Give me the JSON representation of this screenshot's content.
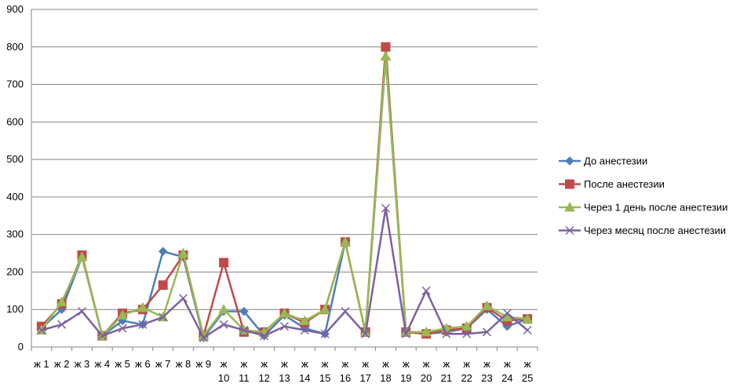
{
  "chart_data": {
    "type": "line",
    "categories": [
      "ж 1",
      "ж 2",
      "ж 3",
      "ж 4",
      "ж 5",
      "ж 6",
      "ж 7",
      "ж 8",
      "ж 9",
      "ж 10",
      "ж 11",
      "ж 12",
      "ж 13",
      "ж 14",
      "ж 15",
      "ж 16",
      "ж 17",
      "ж 18",
      "ж 19",
      "ж 20",
      "ж 21",
      "ж 22",
      "ж 23",
      "ж 24",
      "ж 25"
    ],
    "ylim": [
      0,
      900
    ],
    "yticks": [
      0,
      100,
      200,
      300,
      400,
      500,
      600,
      700,
      800,
      900
    ],
    "grid": true,
    "legend_position": "right",
    "series": [
      {
        "name": "До анестезии",
        "color": "#4A7EBB",
        "marker": "diamond",
        "values": [
          50,
          100,
          240,
          30,
          70,
          60,
          255,
          240,
          25,
          95,
          95,
          30,
          85,
          50,
          35,
          280,
          40,
          770,
          40,
          35,
          40,
          50,
          100,
          55,
          75
        ]
      },
      {
        "name": "После анестезии",
        "color": "#BE4B48",
        "marker": "square",
        "values": [
          55,
          115,
          245,
          30,
          90,
          100,
          165,
          245,
          30,
          225,
          40,
          40,
          90,
          65,
          100,
          280,
          40,
          800,
          40,
          35,
          45,
          50,
          105,
          70,
          75
        ]
      },
      {
        "name": "Через 1 день после анестезии",
        "color": "#98B954",
        "marker": "triangle",
        "values": [
          45,
          120,
          240,
          30,
          85,
          105,
          80,
          250,
          30,
          100,
          45,
          40,
          90,
          70,
          100,
          280,
          40,
          775,
          40,
          40,
          50,
          55,
          110,
          80,
          75
        ]
      },
      {
        "name": "Через месяц после анестезии",
        "color": "#7D60A0",
        "marker": "x",
        "values": [
          45,
          60,
          95,
          30,
          50,
          60,
          80,
          130,
          25,
          60,
          45,
          30,
          55,
          45,
          35,
          95,
          35,
          370,
          35,
          150,
          35,
          35,
          40,
          90,
          45
        ]
      }
    ]
  }
}
